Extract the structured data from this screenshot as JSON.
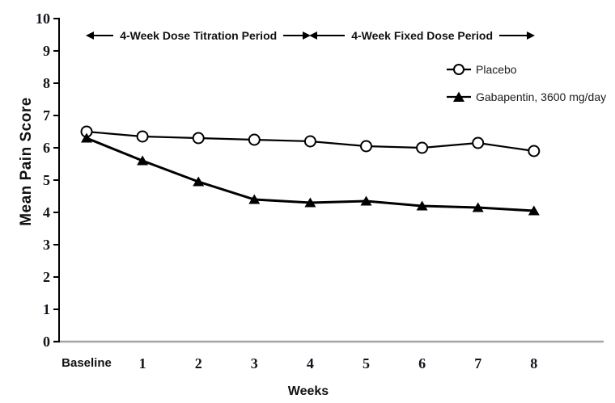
{
  "chart_data": {
    "type": "line",
    "title": "",
    "xlabel": "Weeks",
    "ylabel": "Mean Pain Score",
    "categories": [
      "Baseline",
      "1",
      "2",
      "3",
      "4",
      "5",
      "6",
      "7",
      "8"
    ],
    "y_ticks": [
      0,
      1,
      2,
      3,
      4,
      5,
      6,
      7,
      8,
      9,
      10
    ],
    "ylim": [
      0,
      10
    ],
    "grid": false,
    "legend_position": "upper-right",
    "series": [
      {
        "name": "Placebo",
        "marker": "open-circle",
        "color": "#000000",
        "values": [
          6.5,
          6.35,
          6.3,
          6.25,
          6.2,
          6.05,
          6.0,
          6.15,
          5.9
        ]
      },
      {
        "name": "Gabapentin, 3600 mg/day",
        "marker": "filled-triangle",
        "color": "#000000",
        "values": [
          6.3,
          5.6,
          4.95,
          4.4,
          4.3,
          4.35,
          4.2,
          4.15,
          4.05
        ]
      }
    ],
    "annotations": [
      {
        "label": "4-Week Dose Titration Period",
        "from_category": "Baseline",
        "to_category": "4"
      },
      {
        "label": "4-Week Fixed Dose Period",
        "from_category": "4",
        "to_category": "8"
      }
    ],
    "colors": {
      "axis": "#000000",
      "x_axis_line": "#a6a6a6",
      "tick_label": "#14141e",
      "text": "#111111"
    }
  }
}
